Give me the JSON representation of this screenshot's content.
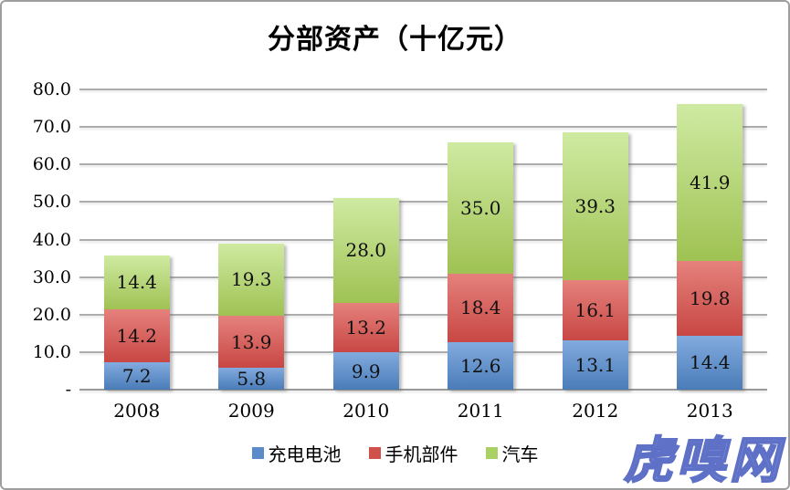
{
  "watermark": {
    "text": "虎嗅网",
    "color": "#96a5e3",
    "outline_color": "#5e71c6"
  },
  "chart_data": {
    "type": "bar",
    "stacked": true,
    "title": "分部资产（十亿元）",
    "categories": [
      "2008",
      "2009",
      "2010",
      "2011",
      "2012",
      "2013"
    ],
    "series": [
      {
        "name": "充电电池",
        "color": "#5b8cc9",
        "color_top": "#82abdf",
        "color_bottom": "#4a7cb8",
        "values": [
          7.2,
          5.8,
          9.9,
          12.6,
          13.1,
          14.4
        ]
      },
      {
        "name": "手机部件",
        "color": "#d0504c",
        "color_top": "#e5817c",
        "color_bottom": "#c84744",
        "values": [
          14.2,
          13.9,
          13.2,
          18.4,
          16.1,
          19.8
        ]
      },
      {
        "name": "汽车",
        "color": "#a9d163",
        "color_top": "#cfeaa2",
        "color_bottom": "#9fc253",
        "values": [
          14.4,
          19.3,
          28.0,
          35.0,
          39.3,
          41.9
        ]
      }
    ],
    "ylim": [
      0,
      80
    ],
    "ytick_step": 10,
    "ytick_labels": [
      "-",
      "10.0",
      "20.0",
      "30.0",
      "40.0",
      "50.0",
      "60.0",
      "70.0",
      "80.0"
    ],
    "grid": true,
    "gridline_color": "#acacac",
    "legend_position": "bottom",
    "value_labels": "inside-center",
    "value_label_format": "0.0"
  }
}
